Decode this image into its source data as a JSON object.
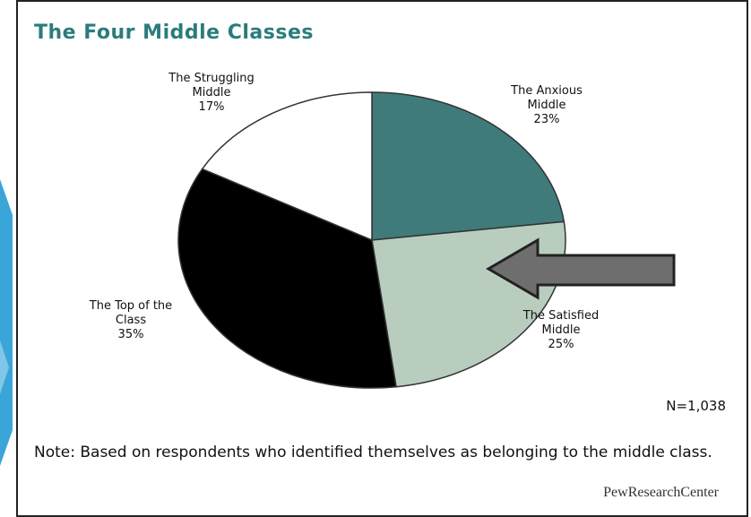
{
  "chart_data": {
    "type": "pie",
    "title": "The Four Middle Classes",
    "categories": [
      "The Anxious Middle",
      "The Satisfied Middle",
      "The Top of the Class",
      "The Struggling Middle"
    ],
    "values": [
      23,
      25,
      35,
      17
    ],
    "value_labels": [
      "23%",
      "25%",
      "35%",
      "17%"
    ],
    "colors": [
      "#3f7b7b",
      "#b9cdbf",
      "#000000",
      "#ffffff"
    ],
    "annotation": "N=1,038",
    "note": "Note: Based on respondents who identified themselves as belonging to the middle class.",
    "source": "PewResearchCenter"
  }
}
